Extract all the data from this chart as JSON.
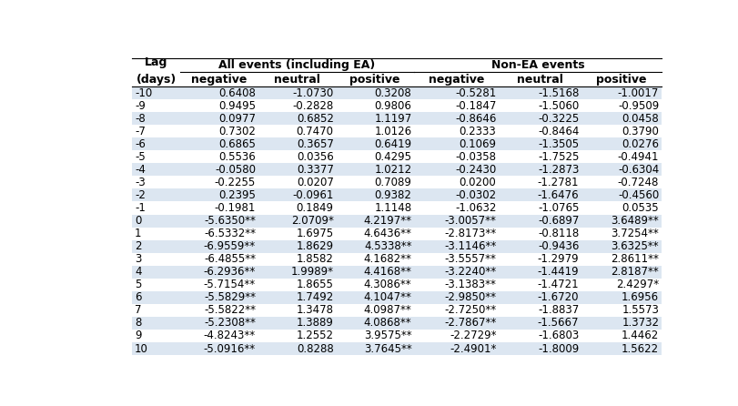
{
  "title_left": "All events (including EA)",
  "title_right": "Non-EA events",
  "col_headers": [
    "negative",
    "neutral",
    "positive",
    "negative",
    "neutral",
    "positive"
  ],
  "lags": [
    "-10",
    "-9",
    "-8",
    "-7",
    "-6",
    "-5",
    "-4",
    "-3",
    "-2",
    "-1",
    "0",
    "1",
    "2",
    "3",
    "4",
    "5",
    "6",
    "7",
    "8",
    "9",
    "10"
  ],
  "data": [
    [
      "0.6408",
      "-1.0730",
      "0.3208",
      "-0.5281",
      "-1.5168",
      "-1.0017"
    ],
    [
      "0.9495",
      "-0.2828",
      "0.9806",
      "-0.1847",
      "-1.5060",
      "-0.9509"
    ],
    [
      "0.0977",
      "0.6852",
      "1.1197",
      "-0.8646",
      "-0.3225",
      "0.0458"
    ],
    [
      "0.7302",
      "0.7470",
      "1.0126",
      "0.2333",
      "-0.8464",
      "0.3790"
    ],
    [
      "0.6865",
      "0.3657",
      "0.6419",
      "0.1069",
      "-1.3505",
      "0.0276"
    ],
    [
      "0.5536",
      "0.0356",
      "0.4295",
      "-0.0358",
      "-1.7525",
      "-0.4941"
    ],
    [
      "-0.0580",
      "0.3377",
      "1.0212",
      "-0.2430",
      "-1.2873",
      "-0.6304"
    ],
    [
      "-0.2255",
      "0.0207",
      "0.7089",
      "0.0200",
      "-1.2781",
      "-0.7248"
    ],
    [
      "0.2395",
      "-0.0961",
      "0.9382",
      "-0.0302",
      "-1.6476",
      "-0.4560"
    ],
    [
      "-0.1981",
      "0.1849",
      "1.1148",
      "-1.0632",
      "-1.0765",
      "0.0535"
    ],
    [
      "-5.6350**",
      "2.0709*",
      "4.2197**",
      "-3.0057**",
      "-0.6897",
      "3.6489**"
    ],
    [
      "-6.5332**",
      "1.6975",
      "4.6436**",
      "-2.8173**",
      "-0.8118",
      "3.7254**"
    ],
    [
      "-6.9559**",
      "1.8629",
      "4.5338**",
      "-3.1146**",
      "-0.9436",
      "3.6325**"
    ],
    [
      "-6.4855**",
      "1.8582",
      "4.1682**",
      "-3.5557**",
      "-1.2979",
      "2.8611**"
    ],
    [
      "-6.2936**",
      "1.9989*",
      "4.4168**",
      "-3.2240**",
      "-1.4419",
      "2.8187**"
    ],
    [
      "-5.7154**",
      "1.8655",
      "4.3086**",
      "-3.1383**",
      "-1.4721",
      "2.4297*"
    ],
    [
      "-5.5829**",
      "1.7492",
      "4.1047**",
      "-2.9850**",
      "-1.6720",
      "1.6956"
    ],
    [
      "-5.5822**",
      "1.3478",
      "4.0987**",
      "-2.7250**",
      "-1.8837",
      "1.5573"
    ],
    [
      "-5.2308**",
      "1.3889",
      "4.0868**",
      "-2.7867**",
      "-1.5667",
      "1.3732"
    ],
    [
      "-4.8243**",
      "1.2552",
      "3.9575**",
      "-2.2729*",
      "-1.6803",
      "1.4462"
    ],
    [
      "-5.0916**",
      "0.8288",
      "3.7645**",
      "-2.4901*",
      "-1.8009",
      "1.5622"
    ]
  ],
  "stripe_color": "#dce6f1",
  "white_color": "#ffffff",
  "text_color": "#000000",
  "header_fontsize": 9,
  "cell_fontsize": 8.5
}
